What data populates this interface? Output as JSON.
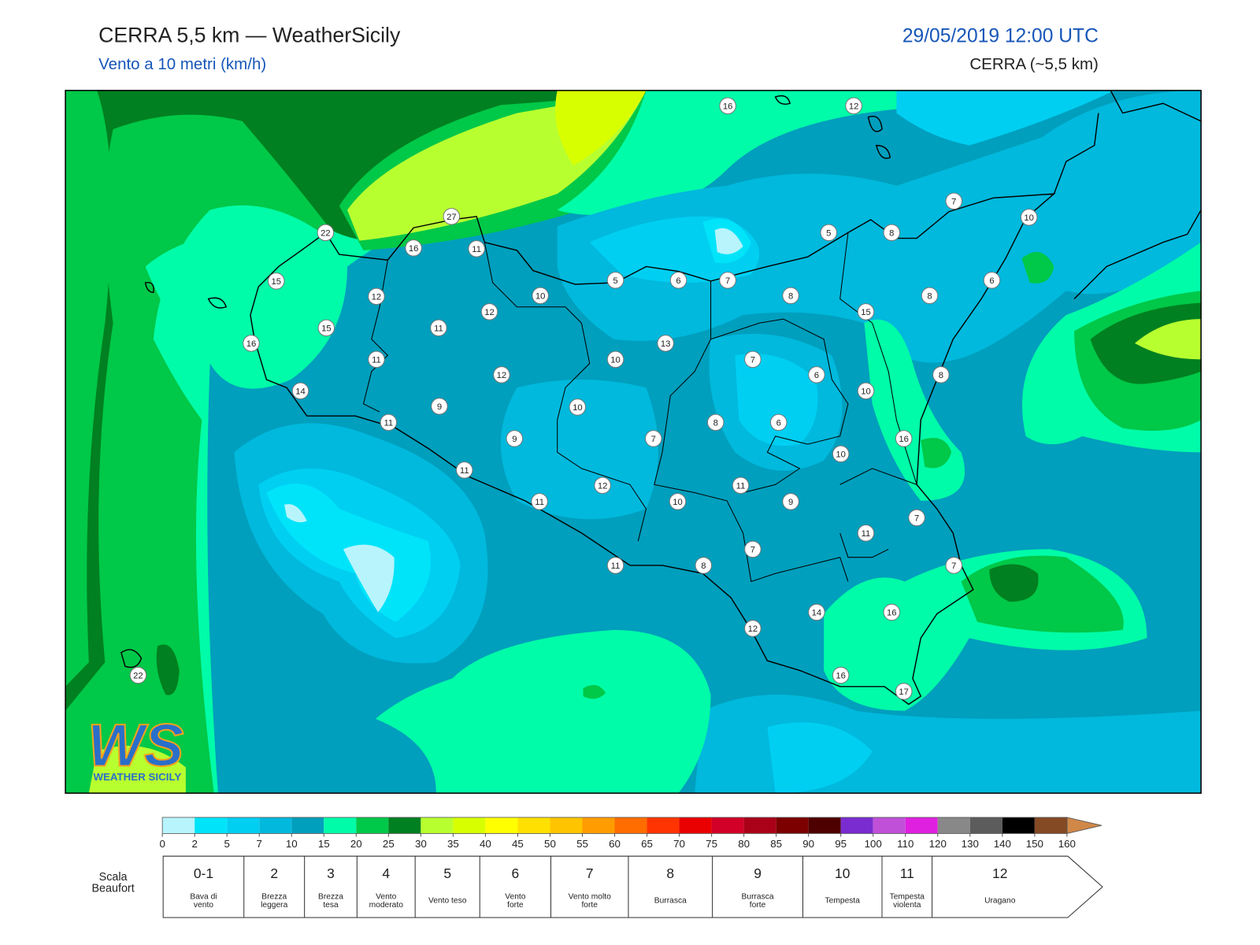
{
  "header": {
    "title": "CERRA 5,5 km — WeatherSicily",
    "subtitle": "Vento a 10 metri (km/h)",
    "date": "29/05/2019 12:00 UTC",
    "model": "CERRA (~5,5 km)"
  },
  "map": {
    "stations": [
      16,
      12,
      7,
      10,
      27,
      22,
      16,
      11,
      5,
      8,
      15,
      5,
      6,
      7,
      6,
      12,
      10,
      8,
      8,
      12,
      15,
      15,
      11,
      16,
      13,
      11,
      10,
      7,
      12,
      6,
      8,
      14,
      10,
      9,
      10,
      11,
      8,
      6,
      9,
      7,
      16,
      10,
      11,
      12,
      11,
      11,
      10,
      9,
      7,
      11,
      7,
      11,
      8,
      7,
      14,
      16,
      12,
      16,
      17,
      22
    ]
  },
  "colorbar": {
    "ticks": [
      0,
      2,
      5,
      7,
      10,
      15,
      20,
      25,
      30,
      35,
      40,
      45,
      50,
      55,
      60,
      65,
      70,
      75,
      80,
      85,
      90,
      95,
      100,
      110,
      120,
      130,
      140,
      150,
      160
    ],
    "colors": [
      "#b8f4fc",
      "#00e4fa",
      "#00cff2",
      "#00b9dd",
      "#009fbd",
      "#00fca8",
      "#00c848",
      "#008020",
      "#b8ff30",
      "#d8ff00",
      "#ffff00",
      "#ffe000",
      "#ffc400",
      "#ff9c00",
      "#ff6c00",
      "#ff3400",
      "#ea0000",
      "#d20028",
      "#aa0018",
      "#7c0000",
      "#4e0000",
      "#7a2cd0",
      "#c050d8",
      "#e020e0",
      "#888888",
      "#5c5c5c",
      "#000000",
      "#844a24"
    ],
    "over_color": "#d08848"
  },
  "beaufort": {
    "label": "Scala Beaufort",
    "levels": [
      {
        "force": "0-1",
        "description": "Bava di vento"
      },
      {
        "force": 2,
        "description": "Brezza leggera"
      },
      {
        "force": 3,
        "description": "Brezza tesa"
      },
      {
        "force": 4,
        "description": "Vento moderato"
      },
      {
        "force": 5,
        "description": "Vento teso"
      },
      {
        "force": 6,
        "description": "Vento forte"
      },
      {
        "force": 7,
        "description": "Vento molto forte"
      },
      {
        "force": 8,
        "description": "Burrasca"
      },
      {
        "force": 9,
        "description": "Burrasca forte"
      },
      {
        "force": 10,
        "description": "Tempesta"
      },
      {
        "force": 11,
        "description": "Tempesta violenta"
      },
      {
        "force": 12,
        "description": "Uragano"
      }
    ]
  },
  "logo": {
    "mark": "WS",
    "text": "WEATHER SICILY"
  }
}
